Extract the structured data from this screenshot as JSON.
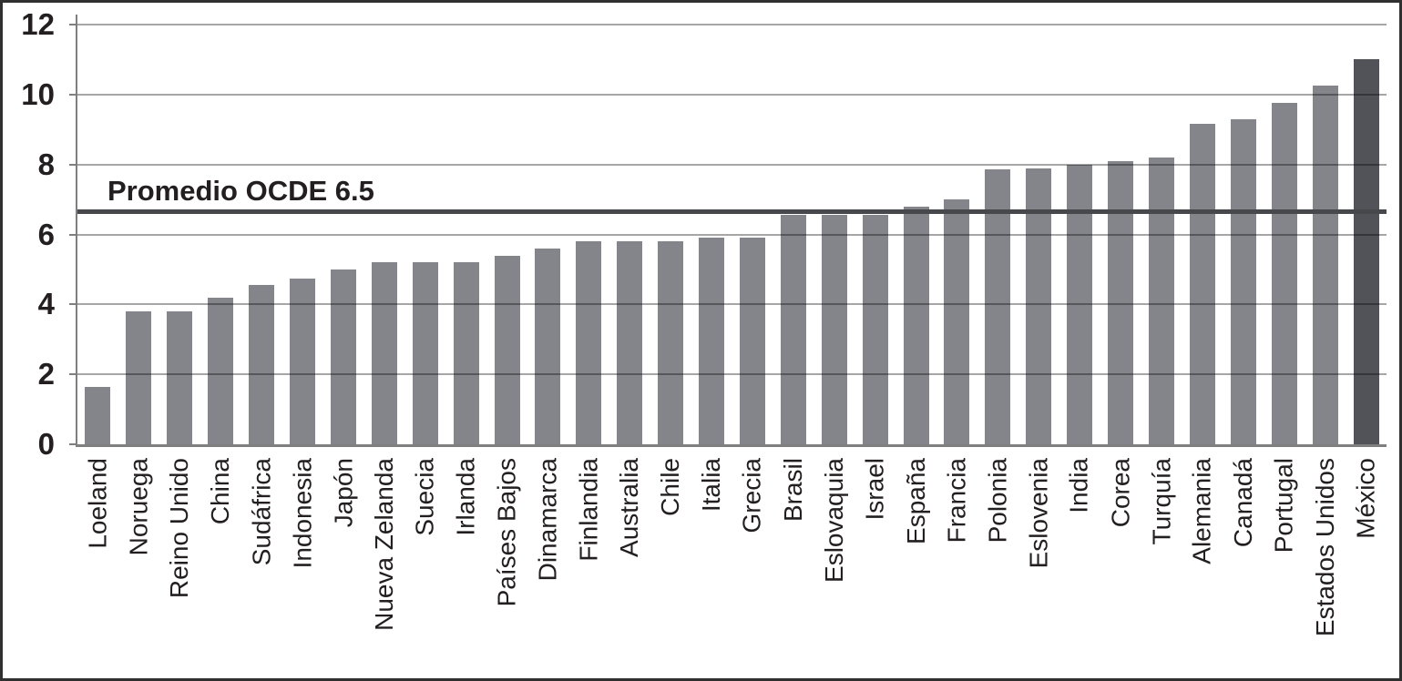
{
  "chart_data": {
    "type": "bar",
    "title": "",
    "xlabel": "",
    "ylabel": "",
    "categories": [
      "Loeland",
      "Noruega",
      "Reino Unido",
      "China",
      "Sudáfrica",
      "Indonesia",
      "Japón",
      "Nueva Zelanda",
      "Suecia",
      "Irlanda",
      "Países Bajos",
      "Dinamarca",
      "Finlandia",
      "Australia",
      "Chile",
      "Italia",
      "Grecia",
      "Brasil",
      "Eslovaquia",
      "Israel",
      "España",
      "Francia",
      "Polonia",
      "Eslovenia",
      "India",
      "Corea",
      "Turquía",
      "Alemania",
      "Canadá",
      "Portugal",
      "Estados Unidos",
      "México"
    ],
    "values": [
      1.65,
      3.8,
      3.8,
      4.2,
      4.55,
      4.75,
      5.0,
      5.2,
      5.2,
      5.2,
      5.4,
      5.6,
      5.8,
      5.8,
      5.8,
      5.9,
      5.9,
      6.55,
      6.55,
      6.55,
      6.8,
      7.0,
      7.85,
      7.9,
      8.0,
      8.1,
      8.2,
      9.15,
      9.3,
      9.75,
      10.25,
      11.0
    ],
    "highlight_category": "México",
    "highlight_index": 31,
    "ylim": [
      0,
      12
    ],
    "y_ticks": [
      0,
      2,
      4,
      6,
      8,
      10,
      12
    ],
    "grid": "horizontal gridlines drawn over bars",
    "legend": "none",
    "annotation_line": {
      "label": "Promedio OCDE 6.5",
      "value": 6.5,
      "drawn_at": 6.65
    },
    "colors": {
      "bar": "#83858a",
      "highlight_bar": "#515358",
      "gridline": "#a6a6a6",
      "axis": "#7f7f7f",
      "annotation_line": "#47484c",
      "text": "#231f20",
      "border": "#303030",
      "background": "#ffffff"
    }
  }
}
